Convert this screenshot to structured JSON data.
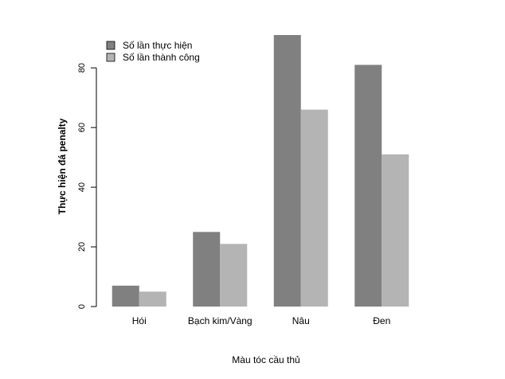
{
  "chart_data": {
    "type": "bar",
    "title": "",
    "xlabel": "Màu tóc cầu thủ",
    "ylabel": "Thực hiện đá penalty",
    "categories": [
      "Hói",
      "Bạch kim/Vàng",
      "Nâu",
      "Đen"
    ],
    "series": [
      {
        "name": "Số lần thực hiện",
        "values": [
          7,
          25,
          91,
          81
        ],
        "color": "#808080"
      },
      {
        "name": "Số lần thành công",
        "values": [
          5,
          21,
          66,
          51
        ],
        "color": "#b4b4b4"
      }
    ],
    "yticks": [
      0,
      20,
      40,
      60,
      80
    ],
    "ylim": [
      0,
      91
    ],
    "grid": false,
    "legend_position": "top-left"
  }
}
